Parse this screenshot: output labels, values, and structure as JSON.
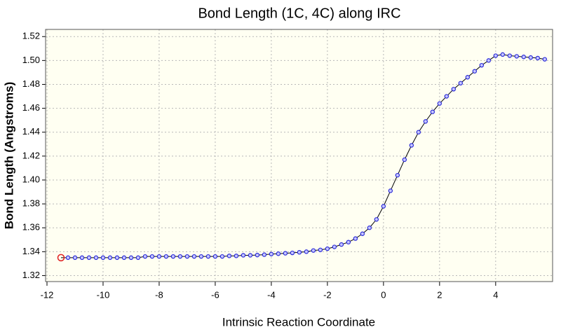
{
  "chart_data": {
    "type": "line",
    "title": "Bond Length (1C, 4C) along IRC",
    "x_label": "Intrinsic Reaction Coordinate",
    "y_label": "Bond Length (Angstroms)",
    "x": [
      -11.5,
      -11.25,
      -11,
      -10.75,
      -10.5,
      -10.25,
      -10,
      -9.75,
      -9.5,
      -9.25,
      -9,
      -8.75,
      -8.5,
      -8.25,
      -8,
      -7.75,
      -7.5,
      -7.25,
      -7,
      -6.75,
      -6.5,
      -6.25,
      -6,
      -5.75,
      -5.5,
      -5.25,
      -5,
      -4.75,
      -4.5,
      -4.25,
      -4,
      -3.75,
      -3.5,
      -3.25,
      -3,
      -2.75,
      -2.5,
      -2.25,
      -2,
      -1.75,
      -1.5,
      -1.25,
      -1,
      -0.75,
      -0.5,
      -0.25,
      0,
      0.25,
      0.5,
      0.75,
      1,
      1.25,
      1.5,
      1.75,
      2,
      2.25,
      2.5,
      2.75,
      3,
      3.25,
      3.5,
      3.75,
      4,
      4.25,
      4.5,
      4.75,
      5,
      5.25,
      5.5,
      5.75
    ],
    "series": [
      {
        "color": "#2b2bd8",
        "line_color": "#000000",
        "values": [
          1.335,
          1.335,
          1.335,
          1.335,
          1.335,
          1.335,
          1.335,
          1.335,
          1.335,
          1.335,
          1.335,
          1.335,
          1.336,
          1.336,
          1.336,
          1.336,
          1.336,
          1.336,
          1.336,
          1.336,
          1.336,
          1.336,
          1.336,
          1.336,
          1.3365,
          1.3365,
          1.337,
          1.337,
          1.3372,
          1.3375,
          1.338,
          1.3383,
          1.3387,
          1.339,
          1.3395,
          1.34,
          1.341,
          1.3415,
          1.3425,
          1.344,
          1.346,
          1.348,
          1.351,
          1.355,
          1.36,
          1.367,
          1.378,
          1.391,
          1.404,
          1.417,
          1.429,
          1.44,
          1.449,
          1.457,
          1.464,
          1.47,
          1.476,
          1.481,
          1.486,
          1.491,
          1.496,
          1.5,
          1.504,
          1.505,
          1.504,
          1.5035,
          1.503,
          1.5025,
          1.502,
          1.501
        ]
      }
    ],
    "highlight_point": 0,
    "highlight_color": "#e02020",
    "xlim": [
      -12.05,
      6.03
    ],
    "ylim": [
      1.315,
      1.526
    ],
    "xticks": [
      -12,
      -10,
      -8,
      -6,
      -4,
      -2,
      0,
      2,
      4
    ],
    "yticks": [
      1.32,
      1.34,
      1.36,
      1.38,
      {
        "value": 1.4,
        "label": "1.40"
      },
      1.42,
      1.44,
      1.46,
      1.48,
      {
        "value": 1.5,
        "label": "1.50"
      },
      1.52
    ],
    "grid": true
  }
}
